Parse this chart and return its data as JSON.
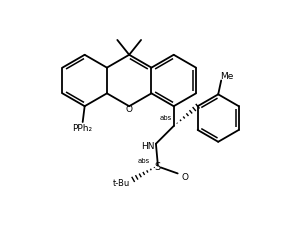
{
  "bg": "#ffffff",
  "lc": "#000000",
  "lw": 1.3,
  "fs": 6.5,
  "figsize": [
    2.86,
    2.47
  ],
  "dpi": 100,
  "xlim": [
    0,
    286
  ],
  "ylim": [
    0,
    247
  ]
}
